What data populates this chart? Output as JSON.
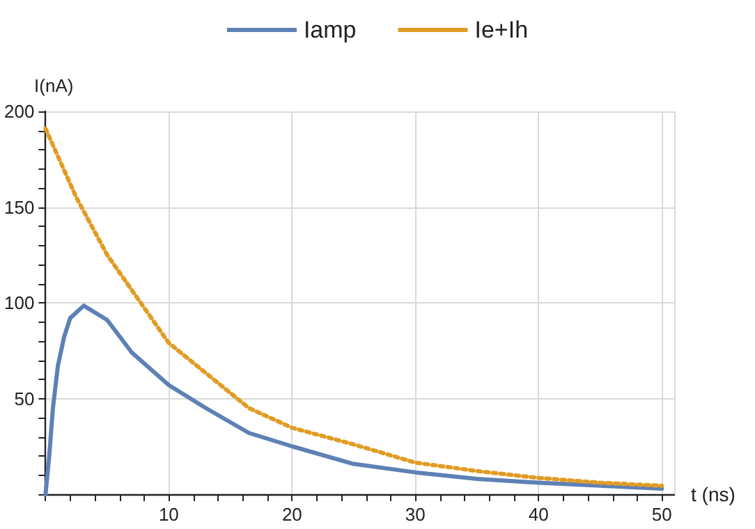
{
  "chart_data": {
    "type": "line",
    "xlabel": "t (ns)",
    "ylabel": "I(nA)",
    "xlim": [
      0,
      51
    ],
    "ylim": [
      0,
      200
    ],
    "xticks": [
      {
        "value": 0,
        "label": null
      },
      {
        "value": 2,
        "label": null
      },
      {
        "value": 4,
        "label": null
      },
      {
        "value": 6,
        "label": null
      },
      {
        "value": 8,
        "label": null
      },
      10,
      {
        "value": 12,
        "label": null
      },
      {
        "value": 14,
        "label": null
      },
      {
        "value": 16,
        "label": null
      },
      {
        "value": 18,
        "label": null
      },
      20,
      {
        "value": 22,
        "label": null
      },
      {
        "value": 24,
        "label": null
      },
      {
        "value": 26,
        "label": null
      },
      {
        "value": 28,
        "label": null
      },
      30,
      {
        "value": 32,
        "label": null
      },
      {
        "value": 34,
        "label": null
      },
      {
        "value": 36,
        "label": null
      },
      {
        "value": 38,
        "label": null
      },
      40,
      {
        "value": 42,
        "label": null
      },
      {
        "value": 44,
        "label": null
      },
      {
        "value": 46,
        "label": null
      },
      {
        "value": 48,
        "label": null
      },
      50
    ],
    "yticks": [
      {
        "value": 0,
        "label": null
      },
      {
        "value": 10,
        "label": null
      },
      {
        "value": 20,
        "label": null
      },
      {
        "value": 30,
        "label": null
      },
      {
        "value": 40,
        "label": null
      },
      50,
      {
        "value": 60,
        "label": null
      },
      {
        "value": 70,
        "label": null
      },
      {
        "value": 80,
        "label": null
      },
      {
        "value": 90,
        "label": null
      },
      100,
      {
        "value": 110,
        "label": null
      },
      {
        "value": 120,
        "label": null
      },
      {
        "value": 130,
        "label": null
      },
      {
        "value": 140,
        "label": null
      },
      150,
      {
        "value": 160,
        "label": null
      },
      {
        "value": 170,
        "label": null
      },
      {
        "value": 180,
        "label": null
      },
      {
        "value": 190,
        "label": null
      },
      200
    ],
    "grid": true,
    "legend": "top",
    "marker": "none",
    "series": [
      {
        "name": "Iamp",
        "color": "#5e81b5",
        "line_style": "solid",
        "x": [
          0,
          0.3,
          0.6,
          1,
          1.5,
          2,
          3.1,
          5,
          7,
          10,
          13,
          16.5,
          20,
          25,
          30,
          35,
          40,
          50
        ],
        "values": [
          0,
          20,
          45,
          67,
          82,
          92,
          98.5,
          91,
          74,
          57,
          45,
          32,
          25,
          15.8,
          11.4,
          8,
          6,
          2.9
        ]
      },
      {
        "name": "Ie+Ih",
        "color": "#e19c24",
        "line_style": "dotted",
        "x": [
          0,
          2.5,
          5,
          10,
          16.5,
          20,
          25,
          30,
          35,
          40,
          45,
          50
        ],
        "values": [
          191,
          155,
          125,
          79,
          45,
          34.7,
          26,
          16.5,
          12.1,
          8.5,
          6,
          4.4
        ]
      }
    ]
  }
}
